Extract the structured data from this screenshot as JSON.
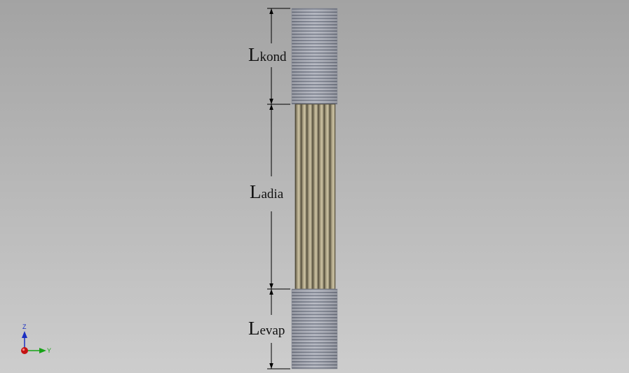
{
  "scene": {
    "labels": {
      "condenser": {
        "main": "L",
        "sub": "kond"
      },
      "adiabatic": {
        "main": "L",
        "sub": "adia"
      },
      "evaporator": {
        "main": "L",
        "sub": "evap"
      }
    },
    "triad": {
      "z_axis": "Z",
      "y_axis": "Y"
    },
    "colors": {
      "fin_dark": "#777c88",
      "fin_light": "#b9bcc6",
      "tube_dark": "#6e6650",
      "tube_light": "#cdc3a4",
      "z_axis": "#1b2fc2",
      "y_axis": "#17a317",
      "x_axis": "#c41212"
    }
  }
}
